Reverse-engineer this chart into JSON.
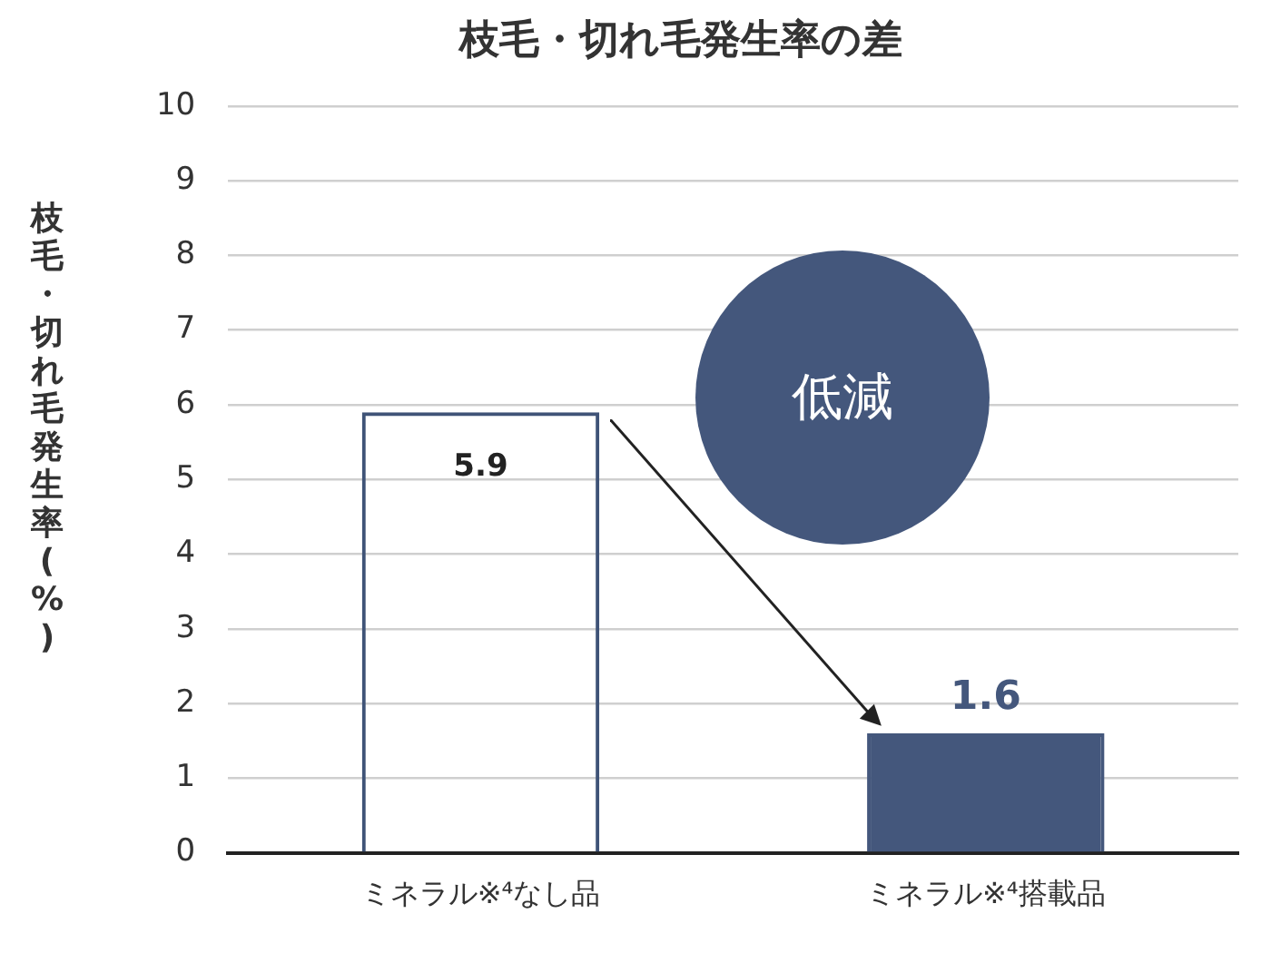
{
  "chart_data": {
    "type": "bar",
    "title": "枝毛・切れ毛発生率の差",
    "ylabel": "枝毛・切れ毛発生率(%)",
    "categories": [
      "ミネラル※⁴なし品",
      "ミネラル※⁴搭載品"
    ],
    "values": [
      5.9,
      1.6
    ],
    "colors": [
      "#3f5377",
      "#44577c"
    ],
    "ylim": [
      0,
      10
    ],
    "yticks": [
      0,
      1,
      2,
      3,
      4,
      5,
      6,
      7,
      8,
      9,
      10
    ],
    "grid": "y",
    "data_labels": true,
    "annotations": [
      "低減"
    ]
  }
}
